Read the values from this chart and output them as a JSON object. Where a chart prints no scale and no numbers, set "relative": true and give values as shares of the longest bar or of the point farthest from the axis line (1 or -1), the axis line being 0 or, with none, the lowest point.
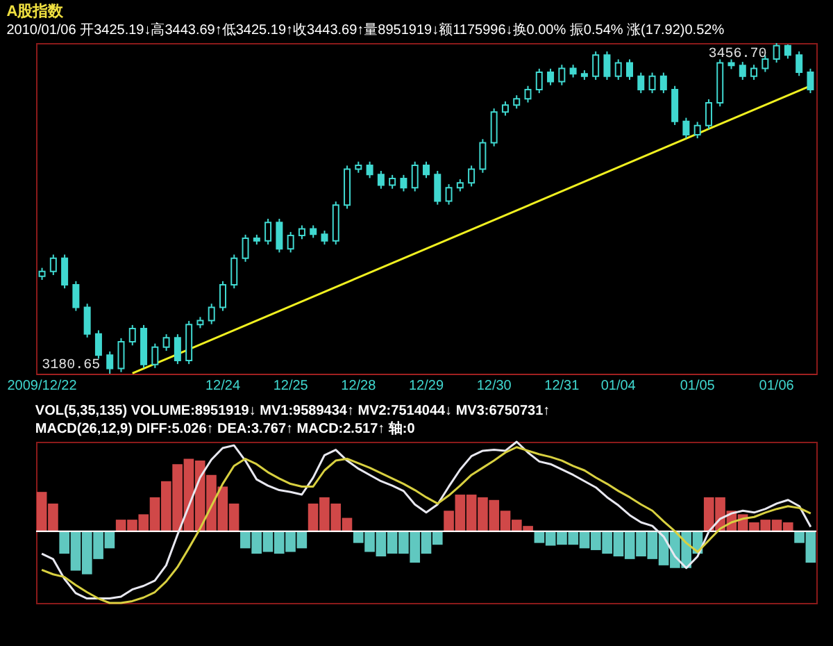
{
  "chart_data": [
    {
      "type": "candlestick",
      "title": "A股指数",
      "subtitle": "2010/01/06 开3425.19↓高3443.69↑低3425.19↑收3443.69↑量8951919↓额1175996↓换0.00% 振0.54% 涨(17.92)0.52%",
      "color": "#40d8d0",
      "tick_labels": "x",
      "categories": [
        "2009/12/22",
        null,
        null,
        null,
        null,
        null,
        null,
        null,
        null,
        null,
        null,
        null,
        null,
        null,
        null,
        null,
        "12/24",
        null,
        null,
        null,
        null,
        null,
        "12/25",
        null,
        null,
        null,
        null,
        null,
        "12/28",
        null,
        null,
        null,
        null,
        null,
        "12/29",
        null,
        null,
        null,
        null,
        null,
        "12/30",
        null,
        null,
        null,
        null,
        null,
        "12/31",
        null,
        null,
        null,
        null,
        "01/04",
        null,
        null,
        null,
        null,
        null,
        null,
        "01/05",
        null,
        null,
        null,
        null,
        null,
        null,
        "01/06",
        null,
        null,
        null
      ],
      "ohlc": [
        [
          3262,
          3269,
          3259,
          3266
        ],
        [
          3266,
          3280.1,
          3263,
          3277.1
        ],
        [
          3277.1,
          3280.1,
          3251.9,
          3254.9
        ],
        [
          3254.9,
          3257.9,
          3233.1,
          3236.1
        ],
        [
          3236.1,
          3239.1,
          3210.9,
          3213.9
        ],
        [
          3213.9,
          3216.9,
          3193.2,
          3196.2
        ],
        [
          3196.2,
          3199.2,
          3180.65,
          3185
        ],
        [
          3185,
          3210.3,
          3182,
          3207.3
        ],
        [
          3207.3,
          3221.3,
          3204.3,
          3218.3
        ],
        [
          3218.3,
          3221.3,
          3185.4,
          3188.4
        ],
        [
          3188.4,
          3205.8,
          3185.4,
          3202.8
        ],
        [
          3202.8,
          3213.6,
          3199.8,
          3210.6
        ],
        [
          3210.6,
          3213.6,
          3188.7,
          3191.7
        ],
        [
          3191.7,
          3224.7,
          3188.7,
          3221.7
        ],
        [
          3221.7,
          3228,
          3218.7,
          3225
        ],
        [
          3225,
          3239.1,
          3222,
          3236.1
        ],
        [
          3236.1,
          3257.9,
          3233.1,
          3254.9
        ],
        [
          3254.9,
          3280.1,
          3251.9,
          3277.1
        ],
        [
          3277.1,
          3296.7,
          3274.1,
          3293.7
        ],
        [
          3293.7,
          3296.7,
          3288.5,
          3291.5
        ],
        [
          3291.5,
          3310,
          3288.5,
          3307
        ],
        [
          3307,
          3310,
          3281.9,
          3284.9
        ],
        [
          3284.9,
          3299,
          3281.9,
          3296
        ],
        [
          3296,
          3304.5,
          3293,
          3301.5
        ],
        [
          3301.5,
          3304.5,
          3294.1,
          3297.1
        ],
        [
          3297.1,
          3300.1,
          3288.5,
          3291.5
        ],
        [
          3291.5,
          3324.4,
          3288.5,
          3321.4
        ],
        [
          3321.4,
          3354.4,
          3318.4,
          3351.4
        ],
        [
          3351.4,
          3357.7,
          3348.4,
          3354.7
        ],
        [
          3354.7,
          3357.7,
          3344,
          3347
        ],
        [
          3347,
          3350,
          3335.1,
          3338.1
        ],
        [
          3338.1,
          3346.6,
          3335.1,
          3343.6
        ],
        [
          3343.6,
          3346.6,
          3332.9,
          3335.9
        ],
        [
          3335.9,
          3357.7,
          3332.9,
          3354.7
        ],
        [
          3354.7,
          3357.7,
          3344,
          3347
        ],
        [
          3347,
          3350,
          3321.8,
          3324.8
        ],
        [
          3324.8,
          3338.9,
          3321.8,
          3335.9
        ],
        [
          3335.9,
          3343,
          3332.9,
          3340
        ],
        [
          3340,
          3354.4,
          3337,
          3351.4
        ],
        [
          3351.4,
          3376.5,
          3348.4,
          3373.5
        ],
        [
          3373.5,
          3402.1,
          3370.5,
          3399.1
        ],
        [
          3399.1,
          3408,
          3396.1,
          3405
        ],
        [
          3405,
          3413.1,
          3402,
          3410.1
        ],
        [
          3410.1,
          3420.9,
          3407.1,
          3417.9
        ],
        [
          3417.9,
          3435.3,
          3414.9,
          3432.3
        ],
        [
          3432.3,
          3435.3,
          3421.5,
          3424.5
        ],
        [
          3424.5,
          3438.6,
          3421.5,
          3435.6
        ],
        [
          3435.6,
          3438.6,
          3428,
          3431
        ],
        [
          3431,
          3434,
          3426,
          3429
        ],
        [
          3429,
          3449.7,
          3426,
          3446.7
        ],
        [
          3446.7,
          3449.7,
          3426,
          3429
        ],
        [
          3429,
          3443.1,
          3426,
          3440.1
        ],
        [
          3440.1,
          3443.1,
          3426,
          3429
        ],
        [
          3429,
          3432,
          3414.9,
          3417.9
        ],
        [
          3417.9,
          3432,
          3414.9,
          3429
        ],
        [
          3429,
          3432,
          3414.9,
          3417.9
        ],
        [
          3417.9,
          3420.9,
          3388.3,
          3391.3
        ],
        [
          3391.3,
          3394.3,
          3377.2,
          3380.2
        ],
        [
          3380.2,
          3390.9,
          3377.2,
          3387.9
        ],
        [
          3387.9,
          3409.8,
          3384.9,
          3406.8
        ],
        [
          3406.8,
          3443.1,
          3403.8,
          3440.1
        ],
        [
          3440.1,
          3443.1,
          3435,
          3438
        ],
        [
          3438,
          3441,
          3426,
          3429
        ],
        [
          3429,
          3438.6,
          3426,
          3435.6
        ],
        [
          3435.6,
          3446.4,
          3432.6,
          3443.4
        ],
        [
          3443.4,
          3456.7,
          3440.4,
          3454.5
        ],
        [
          3454.5,
          3455.5,
          3443.7,
          3446.7
        ],
        [
          3446.7,
          3449.7,
          3429.3,
          3432.3
        ],
        [
          3432.3,
          3435.3,
          3414.9,
          3417.9
        ]
      ],
      "series": [
        {
          "type": "line",
          "color": "#f0f020",
          "values": [
            null,
            null,
            null,
            null,
            null,
            null,
            null,
            null,
            3181,
            null,
            null,
            null,
            null,
            null,
            null,
            null,
            null,
            null,
            null,
            null,
            null,
            null,
            null,
            null,
            null,
            null,
            null,
            null,
            null,
            null,
            null,
            null,
            null,
            null,
            null,
            null,
            null,
            null,
            null,
            null,
            null,
            null,
            null,
            null,
            null,
            null,
            null,
            null,
            null,
            null,
            null,
            null,
            null,
            null,
            null,
            null,
            null,
            null,
            null,
            null,
            null,
            null,
            null,
            null,
            null,
            null,
            null,
            null,
            3421
          ]
        }
      ],
      "annotations": [
        "3456.70",
        "3180.65"
      ]
    },
    {
      "type": "bar",
      "relative": true,
      "tick_labels": false,
      "categories": [
        null,
        null,
        null,
        null,
        null,
        null,
        null,
        null,
        null,
        null,
        null,
        null,
        null,
        null,
        null,
        null,
        null,
        null,
        null,
        null,
        null,
        null,
        null,
        null,
        null,
        null,
        null,
        null,
        null,
        null,
        null,
        null,
        null,
        null,
        null,
        null,
        null,
        null,
        null,
        null,
        null,
        null,
        null,
        null,
        null,
        null,
        null,
        null,
        null,
        null,
        null,
        null,
        null,
        null,
        null,
        null,
        null,
        null,
        null,
        null,
        null,
        null,
        null,
        null,
        null,
        null,
        null,
        null,
        null
      ],
      "series": [
        {
          "type": "bar",
          "values": [
            0.44,
            0.31,
            -0.25,
            -0.44,
            -0.48,
            -0.31,
            -0.19,
            0.13,
            0.13,
            0.19,
            0.38,
            0.56,
            0.75,
            0.81,
            0.79,
            0.63,
            0.5,
            0.31,
            -0.19,
            -0.25,
            -0.23,
            -0.25,
            -0.23,
            -0.19,
            0.31,
            0.38,
            0.31,
            0.15,
            -0.13,
            -0.23,
            -0.28,
            -0.25,
            -0.25,
            -0.35,
            -0.25,
            -0.15,
            0.23,
            0.41,
            0.41,
            0.38,
            0.35,
            0.23,
            0.13,
            0.06,
            -0.13,
            -0.16,
            -0.15,
            -0.15,
            -0.19,
            -0.21,
            -0.25,
            -0.28,
            -0.31,
            -0.28,
            -0.31,
            -0.38,
            -0.41,
            -0.41,
            -0.25,
            0.38,
            0.38,
            0.23,
            0.19,
            0.1,
            0.13,
            0.13,
            0.1,
            -0.13,
            -0.35
          ],
          "colors": [
            "#d04848",
            "#d04848",
            "#60c8c0",
            "#60c8c0",
            "#60c8c0",
            "#60c8c0",
            "#60c8c0",
            "#d04848",
            "#d04848",
            "#d04848",
            "#d04848",
            "#d04848",
            "#d04848",
            "#d04848",
            "#d04848",
            "#d04848",
            "#d04848",
            "#d04848",
            "#60c8c0",
            "#60c8c0",
            "#60c8c0",
            "#60c8c0",
            "#60c8c0",
            "#60c8c0",
            "#d04848",
            "#d04848",
            "#d04848",
            "#d04848",
            "#60c8c0",
            "#60c8c0",
            "#60c8c0",
            "#60c8c0",
            "#60c8c0",
            "#60c8c0",
            "#60c8c0",
            "#60c8c0",
            "#d04848",
            "#d04848",
            "#d04848",
            "#d04848",
            "#d04848",
            "#d04848",
            "#d04848",
            "#d04848",
            "#60c8c0",
            "#60c8c0",
            "#60c8c0",
            "#60c8c0",
            "#60c8c0",
            "#60c8c0",
            "#60c8c0",
            "#60c8c0",
            "#60c8c0",
            "#60c8c0",
            "#60c8c0",
            "#60c8c0",
            "#60c8c0",
            "#60c8c0",
            "#60c8c0",
            "#d04848",
            "#d04848",
            "#d04848",
            "#d04848",
            "#d04848",
            "#d04848",
            "#d04848",
            "#d04848",
            "#60c8c0",
            "#60c8c0"
          ]
        },
        {
          "type": "line",
          "color": "#e8e8f0",
          "values": [
            -0.25,
            -0.31,
            -0.53,
            -0.69,
            -0.75,
            -0.75,
            -0.75,
            -0.73,
            -0.65,
            -0.61,
            -0.55,
            -0.38,
            -0.04,
            0.28,
            0.6,
            0.8,
            0.93,
            0.96,
            0.79,
            0.58,
            0.51,
            0.46,
            0.44,
            0.41,
            0.6,
            0.85,
            0.91,
            0.79,
            0.7,
            0.63,
            0.56,
            0.51,
            0.45,
            0.3,
            0.21,
            0.3,
            0.5,
            0.69,
            0.84,
            0.9,
            0.91,
            0.9,
            1,
            0.88,
            0.78,
            0.75,
            0.69,
            0.63,
            0.56,
            0.49,
            0.38,
            0.29,
            0.18,
            0.1,
            0.06,
            -0.06,
            -0.28,
            -0.41,
            -0.28,
            0,
            0.14,
            0.2,
            0.23,
            0.21,
            0.25,
            0.31,
            0.35,
            0.28,
            0.05
          ]
        },
        {
          "type": "line",
          "color": "#d8d040",
          "values": [
            -0.43,
            -0.48,
            -0.51,
            -0.6,
            -0.68,
            -0.75,
            -0.8,
            -0.8,
            -0.78,
            -0.74,
            -0.68,
            -0.56,
            -0.4,
            -0.19,
            0.03,
            0.28,
            0.53,
            0.73,
            0.81,
            0.75,
            0.66,
            0.59,
            0.53,
            0.5,
            0.5,
            0.68,
            0.79,
            0.81,
            0.76,
            0.71,
            0.65,
            0.59,
            0.53,
            0.46,
            0.38,
            0.31,
            0.4,
            0.51,
            0.63,
            0.71,
            0.79,
            0.88,
            0.94,
            0.9,
            0.86,
            0.83,
            0.79,
            0.73,
            0.68,
            0.6,
            0.53,
            0.45,
            0.38,
            0.3,
            0.23,
            0.11,
            0,
            -0.13,
            -0.23,
            -0.1,
            0.03,
            0.1,
            0.14,
            0.16,
            0.21,
            0.25,
            0.28,
            0.26,
            0.2
          ]
        }
      ],
      "annotations": [
        "VOL(5,35,135) VOLUME:8951919↓ MV1:9589434↑ MV2:7514044↓ MV3:6750731↑",
        "MACD(26,12,9) DIFF:5.026↑ DEA:3.767↑ MACD:2.517↑ 轴:0"
      ]
    }
  ]
}
